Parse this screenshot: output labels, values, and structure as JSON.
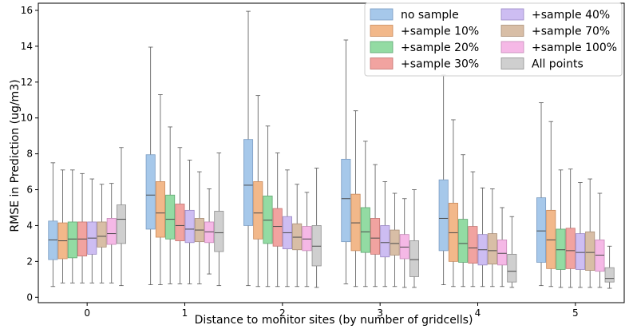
{
  "chart_data": {
    "type": "box",
    "xlabel": "Distance to monitor sites (by number of gridcells)",
    "ylabel": "RMSE in Prediction (ug/m3)",
    "categories": [
      "0",
      "1",
      "2",
      "3",
      "4",
      "5"
    ],
    "yticks": [
      "0",
      "2",
      "4",
      "6",
      "8",
      "10",
      "12",
      "14",
      "16"
    ],
    "ylim": [
      -0.3,
      16.4
    ],
    "grid": false,
    "legend_position": "top-right",
    "series": [
      {
        "name": "no sample",
        "color": "#a6c8ea",
        "edge": "#7b9cc2",
        "boxes": [
          {
            "min": 0.6,
            "q1": 2.1,
            "median": 3.2,
            "q3": 4.25,
            "max": 7.5
          },
          {
            "min": 0.7,
            "q1": 3.8,
            "median": 5.7,
            "q3": 7.95,
            "max": 13.95
          },
          {
            "min": 0.65,
            "q1": 4.0,
            "median": 6.25,
            "q3": 8.8,
            "max": 15.95
          },
          {
            "min": 0.75,
            "q1": 3.1,
            "median": 5.5,
            "q3": 7.7,
            "max": 14.35
          },
          {
            "min": 0.7,
            "q1": 2.6,
            "median": 4.4,
            "q3": 6.55,
            "max": 12.4
          },
          {
            "min": 0.65,
            "q1": 1.95,
            "median": 3.7,
            "q3": 5.55,
            "max": 10.85
          }
        ]
      },
      {
        "name": "+sample 10%",
        "color": "#f2b88a",
        "edge": "#c98a5c",
        "boxes": [
          {
            "min": 0.8,
            "q1": 2.15,
            "median": 3.15,
            "q3": 4.15,
            "max": 7.1
          },
          {
            "min": 0.7,
            "q1": 3.35,
            "median": 4.7,
            "q3": 6.45,
            "max": 11.3
          },
          {
            "min": 0.6,
            "q1": 3.25,
            "median": 4.7,
            "q3": 6.45,
            "max": 11.25
          },
          {
            "min": 0.6,
            "q1": 2.6,
            "median": 4.15,
            "q3": 5.75,
            "max": 10.4
          },
          {
            "min": 0.6,
            "q1": 2.0,
            "median": 3.6,
            "q3": 5.25,
            "max": 9.9
          },
          {
            "min": 0.6,
            "q1": 1.6,
            "median": 3.2,
            "q3": 4.85,
            "max": 9.8
          }
        ]
      },
      {
        "name": "+sample 20%",
        "color": "#93dba3",
        "edge": "#5fa872",
        "boxes": [
          {
            "min": 0.8,
            "q1": 2.2,
            "median": 3.25,
            "q3": 4.2,
            "max": 7.1
          },
          {
            "min": 0.75,
            "q1": 3.25,
            "median": 4.35,
            "q3": 5.7,
            "max": 9.5
          },
          {
            "min": 0.6,
            "q1": 3.0,
            "median": 4.3,
            "q3": 5.65,
            "max": 9.55
          },
          {
            "min": 0.6,
            "q1": 2.5,
            "median": 3.65,
            "q3": 5.0,
            "max": 8.7
          },
          {
            "min": 0.6,
            "q1": 1.95,
            "median": 3.0,
            "q3": 4.35,
            "max": 7.95
          },
          {
            "min": 0.55,
            "q1": 1.55,
            "median": 2.65,
            "q3": 3.8,
            "max": 7.1
          }
        ]
      },
      {
        "name": "+sample 30%",
        "color": "#f1a3a0",
        "edge": "#c57471",
        "boxes": [
          {
            "min": 0.8,
            "q1": 2.3,
            "median": 3.25,
            "q3": 4.2,
            "max": 6.9
          },
          {
            "min": 0.75,
            "q1": 3.15,
            "median": 4.0,
            "q3": 5.2,
            "max": 8.35
          },
          {
            "min": 0.6,
            "q1": 2.85,
            "median": 3.95,
            "q3": 4.95,
            "max": 8.05
          },
          {
            "min": 0.6,
            "q1": 2.4,
            "median": 3.3,
            "q3": 4.4,
            "max": 7.4
          },
          {
            "min": 0.6,
            "q1": 1.9,
            "median": 2.75,
            "q3": 3.95,
            "max": 7.0
          },
          {
            "min": 0.55,
            "q1": 1.6,
            "median": 2.6,
            "q3": 3.85,
            "max": 7.15
          }
        ]
      },
      {
        "name": "+sample 40%",
        "color": "#cdbdf2",
        "edge": "#9a88c4",
        "boxes": [
          {
            "min": 0.8,
            "q1": 2.4,
            "median": 3.3,
            "q3": 4.2,
            "max": 6.6
          },
          {
            "min": 0.75,
            "q1": 3.05,
            "median": 3.8,
            "q3": 4.85,
            "max": 7.65
          },
          {
            "min": 0.6,
            "q1": 2.7,
            "median": 3.6,
            "q3": 4.5,
            "max": 7.1
          },
          {
            "min": 0.6,
            "q1": 2.25,
            "median": 3.05,
            "q3": 4.0,
            "max": 6.45
          },
          {
            "min": 0.6,
            "q1": 1.8,
            "median": 2.65,
            "q3": 3.5,
            "max": 6.1
          },
          {
            "min": 0.55,
            "q1": 1.55,
            "median": 2.5,
            "q3": 3.55,
            "max": 6.4
          }
        ]
      },
      {
        "name": "+sample 70%",
        "color": "#d8bea6",
        "edge": "#a98e76",
        "boxes": [
          {
            "min": 0.8,
            "q1": 2.8,
            "median": 3.4,
            "q3": 4.2,
            "max": 6.3
          },
          {
            "min": 0.75,
            "q1": 3.1,
            "median": 3.75,
            "q3": 4.4,
            "max": 7.0
          },
          {
            "min": 0.6,
            "q1": 2.65,
            "median": 3.35,
            "q3": 4.1,
            "max": 6.3
          },
          {
            "min": 0.6,
            "q1": 2.35,
            "median": 3.0,
            "q3": 3.75,
            "max": 5.8
          },
          {
            "min": 0.6,
            "q1": 1.85,
            "median": 2.6,
            "q3": 3.55,
            "max": 6.05
          },
          {
            "min": 0.55,
            "q1": 1.5,
            "median": 2.5,
            "q3": 3.65,
            "max": 6.6
          }
        ]
      },
      {
        "name": "+sample 100%",
        "color": "#f5b8e6",
        "edge": "#c789b8",
        "boxes": [
          {
            "min": 0.8,
            "q1": 2.95,
            "median": 3.55,
            "q3": 4.4,
            "max": 6.35
          },
          {
            "min": 1.3,
            "q1": 3.05,
            "median": 3.65,
            "q3": 4.2,
            "max": 6.05
          },
          {
            "min": 0.6,
            "q1": 2.6,
            "median": 3.25,
            "q3": 3.95,
            "max": 5.85
          },
          {
            "min": 0.55,
            "q1": 2.15,
            "median": 2.8,
            "q3": 3.5,
            "max": 5.5
          },
          {
            "min": 0.6,
            "q1": 1.8,
            "median": 2.45,
            "q3": 3.2,
            "max": 5.0
          },
          {
            "min": 0.55,
            "q1": 1.45,
            "median": 2.35,
            "q3": 3.2,
            "max": 5.8
          }
        ]
      },
      {
        "name": "All points",
        "color": "#cfcfcf",
        "edge": "#8e8e8e",
        "boxes": [
          {
            "min": 0.65,
            "q1": 3.0,
            "median": 4.35,
            "q3": 5.15,
            "max": 8.35
          },
          {
            "min": 0.65,
            "q1": 2.55,
            "median": 3.6,
            "q3": 4.8,
            "max": 8.05
          },
          {
            "min": 0.55,
            "q1": 1.75,
            "median": 2.85,
            "q3": 4.0,
            "max": 7.2
          },
          {
            "min": 0.55,
            "q1": 1.15,
            "median": 2.1,
            "q3": 3.15,
            "max": 6.0
          },
          {
            "min": 0.55,
            "q1": 0.85,
            "median": 1.45,
            "q3": 2.4,
            "max": 4.5
          },
          {
            "min": 0.5,
            "q1": 0.85,
            "median": 1.05,
            "q3": 1.65,
            "max": 2.85
          }
        ]
      }
    ]
  }
}
